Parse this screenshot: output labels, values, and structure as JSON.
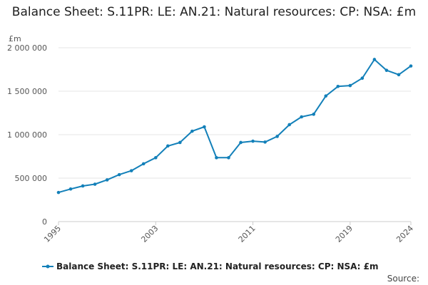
{
  "chart_data": {
    "type": "line",
    "title": "Balance Sheet: S.11PR: LE: AN.21: Natural resources: CP: NSA: £m",
    "unit": "£m",
    "ylim": [
      0,
      2000000
    ],
    "y_ticks": [
      0,
      500000,
      1000000,
      1500000,
      2000000
    ],
    "y_tick_labels": [
      "0",
      "500 000",
      "1 000 000",
      "1 500 000",
      "2 000 000"
    ],
    "x_range": [
      1995,
      2024
    ],
    "x_ticks": [
      1995,
      2003,
      2011,
      2019,
      2024
    ],
    "x_tick_labels": [
      "1995",
      "2003",
      "2011",
      "2019",
      "2024"
    ],
    "grid": true,
    "legend_position": "bottom",
    "colors": {
      "series": "#1380B9",
      "grid": "#e6e6e6",
      "axis": "#cccccc"
    },
    "series": [
      {
        "name": "Balance Sheet: S.11PR: LE: AN.21: Natural resources: CP: NSA: £m",
        "x": [
          1995,
          1996,
          1997,
          1998,
          1999,
          2000,
          2001,
          2002,
          2003,
          2004,
          2005,
          2006,
          2007,
          2008,
          2009,
          2010,
          2011,
          2012,
          2013,
          2014,
          2015,
          2016,
          2017,
          2018,
          2019,
          2020,
          2021,
          2022,
          2023,
          2024
        ],
        "values": [
          335000,
          375000,
          410000,
          430000,
          480000,
          540000,
          585000,
          665000,
          735000,
          870000,
          910000,
          1040000,
          1090000,
          735000,
          735000,
          910000,
          925000,
          915000,
          980000,
          1115000,
          1205000,
          1235000,
          1445000,
          1555000,
          1565000,
          1650000,
          1865000,
          1740000,
          1690000,
          1790000
        ]
      }
    ],
    "source_text": "Source:"
  }
}
